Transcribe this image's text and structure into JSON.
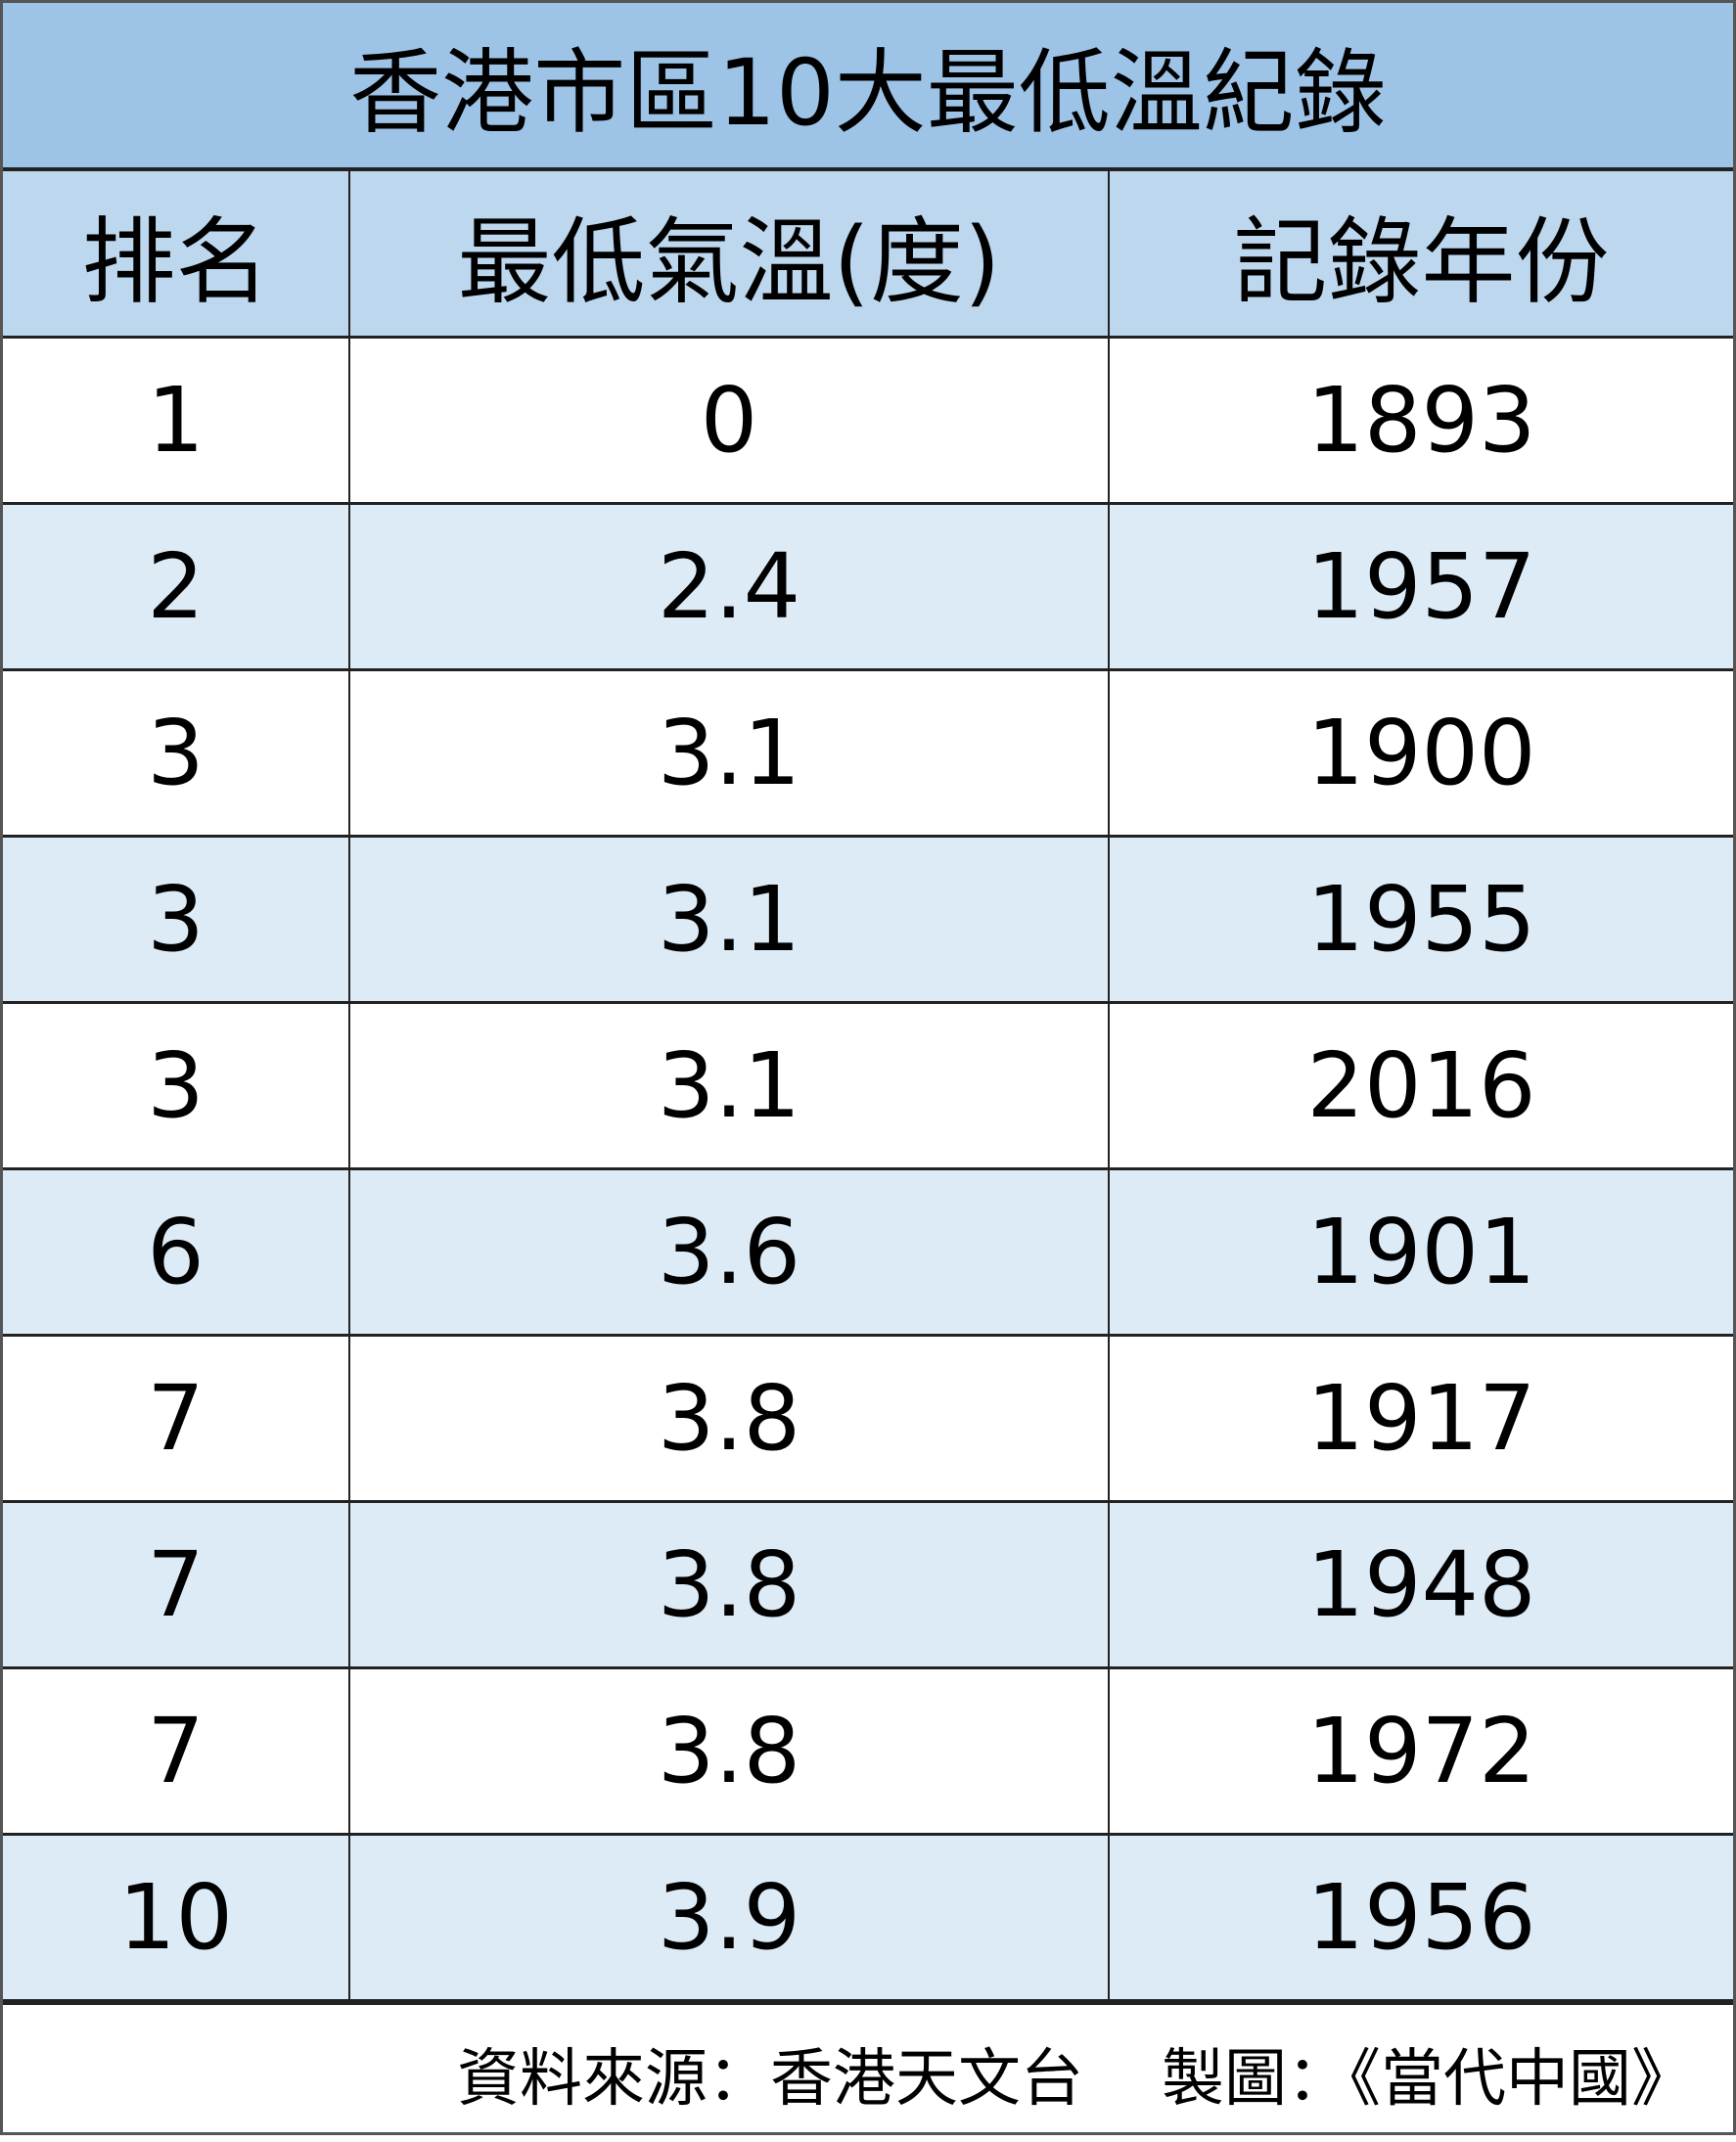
{
  "title": "香港市區10大最低溫紀錄",
  "columns": [
    "排名",
    "最低氣溫(度)",
    "記錄年份"
  ],
  "rows": [
    [
      "1",
      "0",
      "1893"
    ],
    [
      "2",
      "2.4",
      "1957"
    ],
    [
      "3",
      "3.1",
      "1900"
    ],
    [
      "3",
      "3.1",
      "1955"
    ],
    [
      "3",
      "3.1",
      "2016"
    ],
    [
      "6",
      "3.6",
      "1901"
    ],
    [
      "7",
      "3.8",
      "1917"
    ],
    [
      "7",
      "3.8",
      "1948"
    ],
    [
      "7",
      "3.8",
      "1972"
    ],
    [
      "10",
      "3.9",
      "1956"
    ]
  ],
  "footer": {
    "source": "資料來源：香港天文台",
    "credit": "製圖：《當代中國》"
  },
  "colors": {
    "title_bg": "#9dc3e6",
    "header_bg": "#bdd7ee",
    "alt_row_bg": "#ddebf7",
    "row_bg": "#ffffff"
  }
}
